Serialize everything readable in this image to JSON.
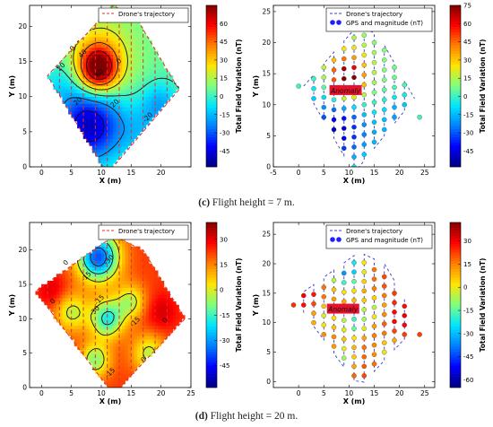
{
  "captions": {
    "c": {
      "letter": "(c)",
      "text": " Flight height = 7 m."
    },
    "d": {
      "letter": "(d)",
      "text": " Flight height = 20 m."
    }
  },
  "colormap": [
    "#00007f",
    "#0000ff",
    "#007fff",
    "#00e5ff",
    "#7fff7f",
    "#ffe500",
    "#ff7f00",
    "#ff0000",
    "#7f0000"
  ],
  "chart_data": [
    {
      "id": "c-left",
      "type": "heatmap",
      "xlabel": "X (m)",
      "ylabel": "Y (m)",
      "xlim": [
        -2,
        25
      ],
      "ylim": [
        0,
        23
      ],
      "xticks": [
        0,
        5,
        10,
        15,
        20
      ],
      "yticks": [
        0,
        5,
        10,
        15,
        20
      ],
      "legend": [
        {
          "label": "Drone's trajectory",
          "style": "dashed",
          "color": "#e03030"
        }
      ],
      "polygon": [
        [
          11,
          -1
        ],
        [
          23,
          11
        ],
        [
          16,
          21
        ],
        [
          12,
          23
        ],
        [
          1,
          13
        ]
      ],
      "colorbar": {
        "label": "Total Field Variation (nT)",
        "range": [
          -58,
          75
        ],
        "ticks": [
          60,
          45,
          30,
          15,
          0,
          -15,
          -30,
          -45
        ]
      },
      "base_value": 5,
      "blobs": [
        {
          "x": 9.5,
          "y": 14,
          "amp": 70,
          "sigma": 2.2
        },
        {
          "x": 10,
          "y": 16,
          "amp": 20,
          "sigma": 4
        },
        {
          "x": 8,
          "y": 6,
          "amp": -55,
          "sigma": 3.8
        },
        {
          "x": 17,
          "y": 5,
          "amp": -15,
          "sigma": 3
        },
        {
          "x": 20,
          "y": 9,
          "amp": -20,
          "sigma": 2.2
        },
        {
          "x": 3,
          "y": 12,
          "amp": -10,
          "sigma": 2.5
        }
      ],
      "contour_levels": [
        -40,
        -20,
        0,
        20,
        40,
        60
      ],
      "contour_labels": [
        {
          "text": "60",
          "x": 9.6,
          "y": 13.4
        },
        {
          "text": "40",
          "x": 6.8,
          "y": 16.2
        },
        {
          "text": "20",
          "x": 3.2,
          "y": 14.3
        },
        {
          "text": "0",
          "x": 12.9,
          "y": 15.1
        },
        {
          "text": "20",
          "x": 6.0,
          "y": 9.4
        },
        {
          "text": "0",
          "x": 5.1,
          "y": 16.9
        },
        {
          "text": "-20",
          "x": 17.7,
          "y": 7.1
        },
        {
          "text": "20",
          "x": 12.2,
          "y": 9.1
        }
      ],
      "trajectory_cols": [
        1,
        3,
        5,
        7,
        9,
        11,
        13,
        15,
        17,
        19,
        21,
        23
      ]
    },
    {
      "id": "c-right",
      "type": "scatter",
      "xlabel": "X (m)",
      "ylabel": "Y (m)",
      "xlim": [
        -5,
        27
      ],
      "ylim": [
        0,
        26
      ],
      "xticks": [
        -5,
        0,
        5,
        10,
        15,
        20,
        25
      ],
      "yticks": [
        0,
        5,
        10,
        15,
        20,
        25
      ],
      "legend": [
        {
          "label": "Drone's trajectory",
          "style": "dashed",
          "color": "#3a3ad0"
        },
        {
          "label": "GPS and magnitude (nT)",
          "style": "marker",
          "color": "#2020ff"
        }
      ],
      "annotation": {
        "text": "Anomaly",
        "x": 6.3,
        "y": 12
      },
      "polygon": [
        [
          11,
          -1
        ],
        [
          23,
          11
        ],
        [
          16,
          21
        ],
        [
          12,
          23
        ],
        [
          1,
          13
        ]
      ],
      "colorbar": {
        "label": "Total Field Variation (nT)",
        "range": [
          -58,
          75
        ],
        "ticks": [
          75,
          60,
          45,
          30,
          15,
          0,
          -15,
          -30,
          -45
        ]
      },
      "extra_points": [
        [
          0,
          13
        ],
        [
          24,
          8
        ]
      ],
      "trajectory_cols": [
        1,
        3,
        5,
        7,
        9,
        11,
        13,
        15,
        17,
        19,
        21,
        23
      ]
    },
    {
      "id": "d-left",
      "type": "heatmap",
      "xlabel": "X (m)",
      "ylabel": "Y (m)",
      "xlim": [
        -2,
        25
      ],
      "ylim": [
        0,
        24
      ],
      "xticks": [
        0,
        5,
        10,
        15,
        20,
        25
      ],
      "yticks": [
        0,
        5,
        10,
        15,
        20
      ],
      "legend": [
        {
          "label": "Drone's trajectory",
          "style": "dashed",
          "color": "#e03030"
        }
      ],
      "polygon": [
        [
          12,
          -1
        ],
        [
          24,
          10
        ],
        [
          17,
          20
        ],
        [
          12,
          22
        ],
        [
          -1,
          14
        ]
      ],
      "colorbar": {
        "label": "Total Field Variation (nT)",
        "range": [
          -58,
          40
        ],
        "ticks": [
          30,
          15,
          0,
          -15,
          -30,
          -45
        ]
      },
      "base_value": 22,
      "blobs": [
        {
          "x": 9.5,
          "y": 19,
          "amp": -60,
          "sigma": 2.5
        },
        {
          "x": 11,
          "y": 10,
          "amp": -40,
          "sigma": 2.0
        },
        {
          "x": 9,
          "y": 4,
          "amp": -30,
          "sigma": 1.8
        },
        {
          "x": 5,
          "y": 11,
          "amp": -25,
          "sigma": 2.0
        },
        {
          "x": 15,
          "y": 12.5,
          "amp": -25,
          "sigma": 1.8
        },
        {
          "x": 18,
          "y": 5,
          "amp": -25,
          "sigma": 2.0
        },
        {
          "x": 20,
          "y": 11,
          "amp": 10,
          "sigma": 2.0
        },
        {
          "x": 2,
          "y": 14,
          "amp": 10,
          "sigma": 1.8
        }
      ],
      "contour_levels": [
        -45,
        -30,
        -15,
        0
      ],
      "contour_labels": [
        {
          "text": "-30",
          "x": 11.2,
          "y": 18.6
        },
        {
          "text": "-15",
          "x": 7.4,
          "y": 16.2
        },
        {
          "text": "0",
          "x": 4.0,
          "y": 18.2
        },
        {
          "text": "-15",
          "x": 9.6,
          "y": 12.8
        },
        {
          "text": "-30",
          "x": 8.8,
          "y": 11.2
        },
        {
          "text": "0",
          "x": 1.8,
          "y": 12.6
        },
        {
          "text": "-15",
          "x": 15.6,
          "y": 9.6
        },
        {
          "text": "0",
          "x": 20.6,
          "y": 9.8
        },
        {
          "text": "-15",
          "x": 11.4,
          "y": 2.2
        },
        {
          "text": "0",
          "x": 17.0,
          "y": 4.1
        }
      ],
      "trajectory_cols": [
        1,
        3,
        5,
        7,
        9,
        11,
        13,
        15,
        17,
        19,
        21
      ]
    },
    {
      "id": "d-right",
      "type": "scatter",
      "xlabel": "X (m)",
      "ylabel": "Y (m)",
      "xlim": [
        -5,
        27
      ],
      "ylim": [
        -1,
        27
      ],
      "xticks": [
        0,
        5,
        10,
        15,
        20,
        25
      ],
      "yticks": [
        0,
        5,
        10,
        15,
        20,
        25
      ],
      "legend": [
        {
          "label": "Drone's trajectory",
          "style": "dashed",
          "color": "#3a3ad0"
        },
        {
          "label": "GPS and magnitude (nT)",
          "style": "marker",
          "color": "#2020ff"
        }
      ],
      "annotation": {
        "text": "Anomaly",
        "x": 5.8,
        "y": 12
      },
      "polygon": [
        [
          12,
          -1
        ],
        [
          24,
          10
        ],
        [
          17,
          20
        ],
        [
          12,
          22
        ],
        [
          -1,
          14
        ]
      ],
      "colorbar": {
        "label": "Total Field Variation (nT)",
        "range": [
          -65,
          42
        ],
        "ticks": [
          30,
          15,
          0,
          -15,
          -30,
          -45,
          -60
        ]
      },
      "extra_points": [
        [
          -1,
          13
        ],
        [
          24,
          8
        ]
      ],
      "trajectory_cols": [
        1,
        3,
        5,
        7,
        9,
        11,
        13,
        15,
        17,
        19,
        21
      ]
    }
  ]
}
